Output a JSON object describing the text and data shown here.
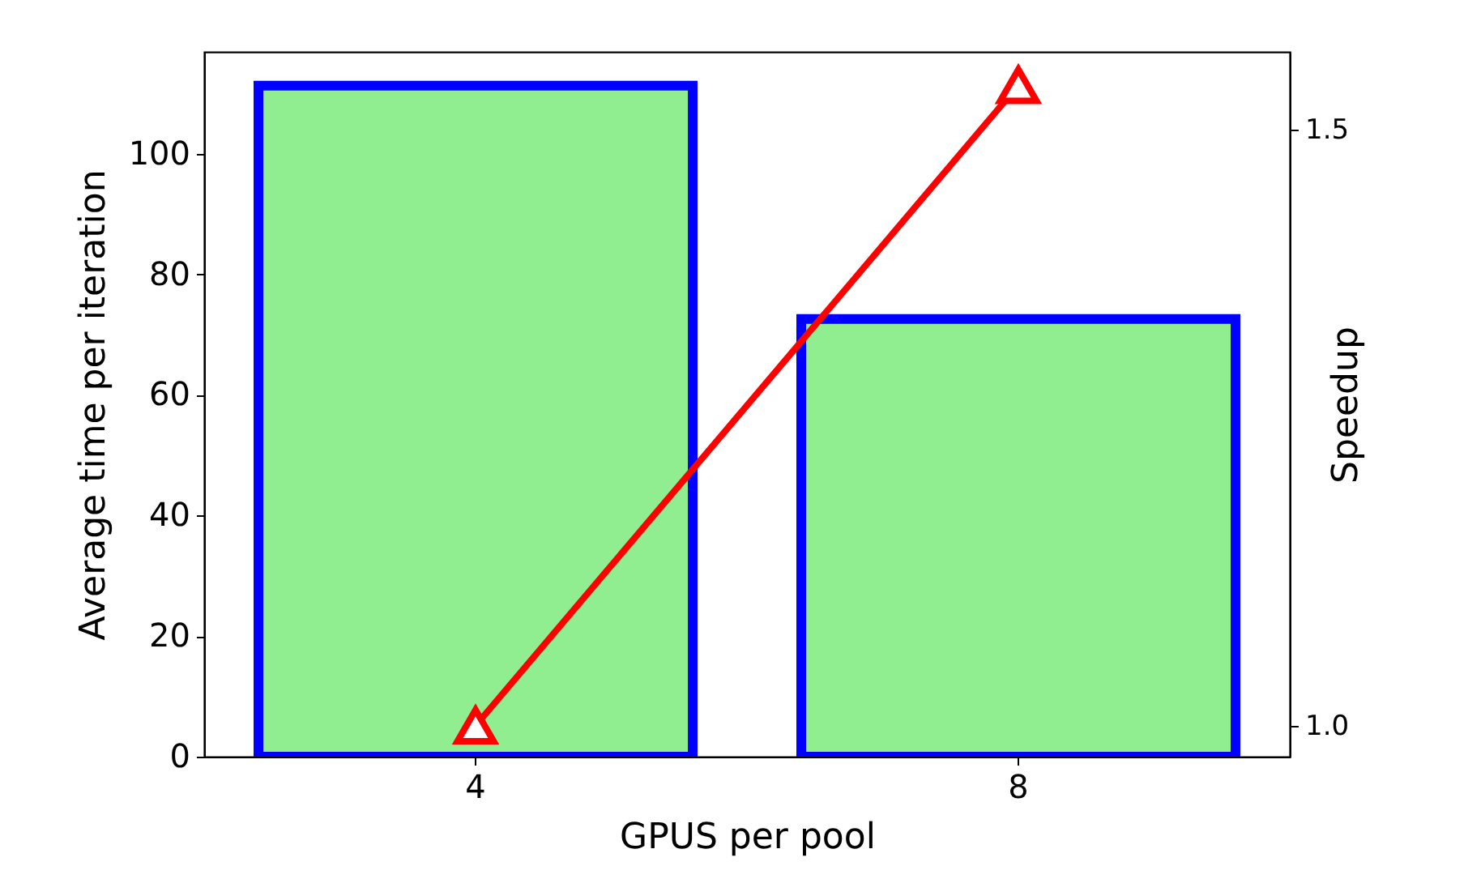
{
  "chart_data": {
    "type": "bar",
    "xlabel": "GPUS per pool",
    "ylabel": "Average time per iteration",
    "y2label": "Speedup",
    "categories": [
      "4",
      "8"
    ],
    "series": [
      {
        "color": "#90ee90",
        "values": [
          111.3,
          72.6
        ]
      },
      {
        "type": "line",
        "axis": "y2",
        "color": "#ff0000",
        "marker": "triangle",
        "values": [
          1.0,
          1.537
        ]
      }
    ],
    "ylim": [
      0,
      116.9
    ],
    "yticks": [
      0,
      20,
      40,
      60,
      80,
      100
    ],
    "y2lim": [
      0.974,
      1.565
    ],
    "y2ticks": [
      {
        "value": 1.0,
        "label": "1.0"
      },
      1.5
    ],
    "grid": false
  }
}
